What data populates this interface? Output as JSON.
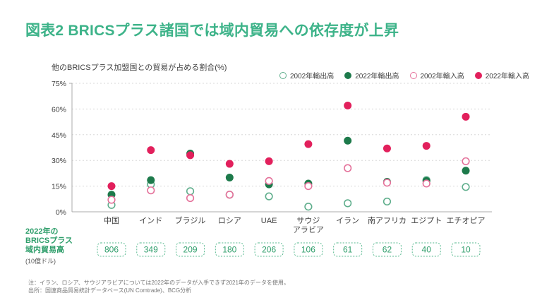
{
  "page": {
    "title": "図表2 BRICSプラス諸国では域内貿易への依存度が上昇",
    "note_line1": "注：イラン、ロシア、サウジアラビアについては2022年のデータが入手できず2021年のデータを使用。",
    "note_line2": "出所：国連商品貿易統計データベース(UN Comtrade)、BCG分析"
  },
  "chart_data": {
    "type": "scatter",
    "title": "他のBRICSプラス加盟国との貿易が占める割合(%)",
    "categories": [
      "中国",
      "インド",
      "ブラジル",
      "ロシア",
      "UAE",
      "サウジ\nアラビア",
      "イラン",
      "南アフリカ",
      "エジプト",
      "エチオピア"
    ],
    "series": [
      {
        "name": "2002年輸出高",
        "style": "open",
        "color": "#5fae8c",
        "values": [
          4,
          16,
          12,
          10,
          9,
          3,
          5,
          6,
          18.5,
          14.5
        ]
      },
      {
        "name": "2022年輸出高",
        "style": "filled",
        "color": "#1d7a4b",
        "values": [
          10,
          18.5,
          34,
          20,
          16,
          16.5,
          41.5,
          17.5,
          18,
          24
        ]
      },
      {
        "name": "2002年輸入高",
        "style": "open",
        "color": "#e4719a",
        "values": [
          7,
          12.5,
          8,
          10,
          18,
          15,
          25.5,
          17,
          16.5,
          29.5
        ]
      },
      {
        "name": "2022年輸入高",
        "style": "filled",
        "color": "#e2205c",
        "values": [
          15,
          36,
          33,
          28,
          29.5,
          39.5,
          62,
          37,
          38.5,
          55.5
        ]
      }
    ],
    "ylim": [
      0,
      75
    ],
    "yticks": [
      0,
      15,
      30,
      45,
      60,
      75
    ],
    "ytick_suffix": "%",
    "grid": "dashed-horizontal",
    "legend_position": "top-right",
    "colors": {
      "title_green": "#3db389",
      "axis_gray": "#ababab",
      "grid_gray": "#d8d8d8",
      "label_gray": "#3f3f3f"
    }
  },
  "volume_row": {
    "label_lines": [
      "2022年の",
      "BRICSプラス",
      "域内貿易高"
    ],
    "unit": "(10億ドル)",
    "values": [
      "806",
      "349",
      "209",
      "180",
      "206",
      "106",
      "61",
      "62",
      "40",
      "10"
    ],
    "box_color": "#56b98e",
    "text_color": "#2f9e6b"
  }
}
